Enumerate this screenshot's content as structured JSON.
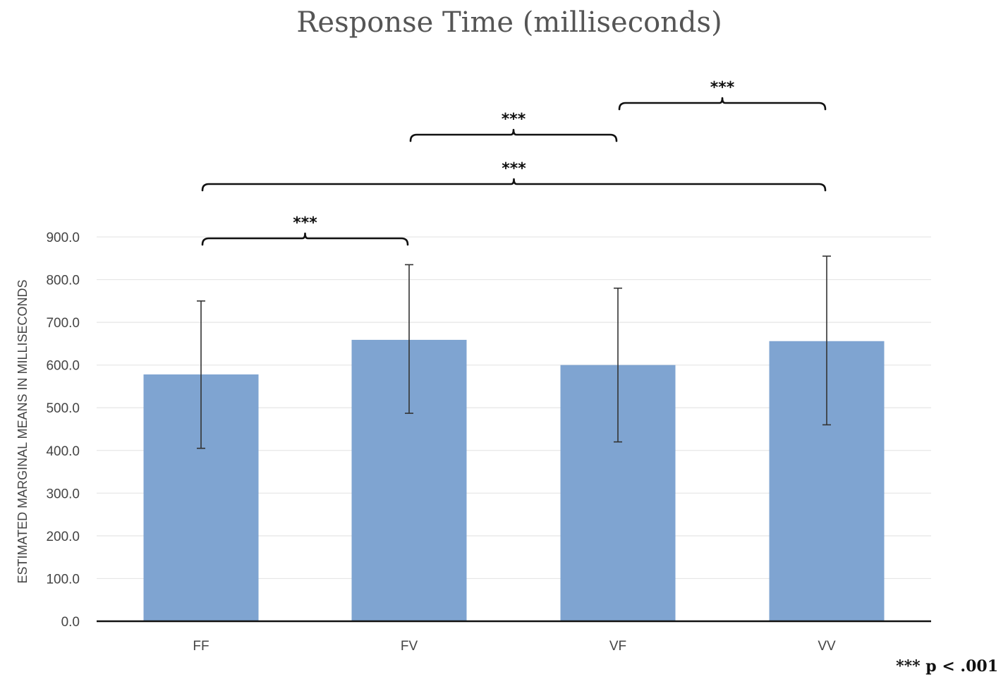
{
  "chart_data": {
    "type": "bar",
    "title": "Response Time (milliseconds)",
    "xlabel": "",
    "ylabel": "ESTIMATED MARGINAL MEANS IN MILLISECONDS",
    "categories": [
      "FF",
      "FV",
      "VF",
      "VV"
    ],
    "values": [
      578,
      659,
      600,
      656
    ],
    "error_bars": [
      {
        "low": 405,
        "high": 750
      },
      {
        "low": 487,
        "high": 835
      },
      {
        "low": 420,
        "high": 780
      },
      {
        "low": 460,
        "high": 855
      }
    ],
    "ylim": [
      0,
      900
    ],
    "yticks": [
      "0.0",
      "100.0",
      "200.0",
      "300.0",
      "400.0",
      "500.0",
      "600.0",
      "700.0",
      "800.0",
      "900.0"
    ],
    "grid": true,
    "bar_color": "#7fa4d1",
    "significance": [
      {
        "from": "FF",
        "to": "FV",
        "label": "***",
        "level": 1
      },
      {
        "from": "FF",
        "to": "VV",
        "label": "***",
        "level": 2
      },
      {
        "from": "FV",
        "to": "VF",
        "label": "***",
        "level": 3
      },
      {
        "from": "VF",
        "to": "VV",
        "label": "***",
        "level": 4
      }
    ],
    "footnote": "*** p < .001"
  }
}
